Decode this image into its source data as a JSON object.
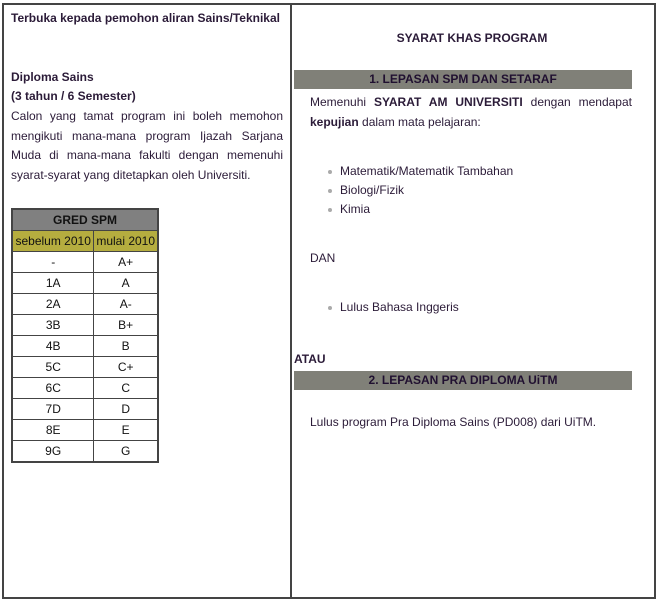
{
  "left": {
    "intro": "Terbuka kepada pemohon aliran Sains/Teknikal",
    "program_title": "Diploma Sains",
    "duration": "(3 tahun / 6 Semester)",
    "description": "Calon yang tamat program ini boleh memohon mengikuti mana-mana program Ijazah Sarjana Muda di mana-mana fakulti dengan memenuhi syarat-syarat yang ditetapkan oleh Universiti.",
    "grade_table": {
      "title": "GRED SPM",
      "columns": [
        "sebelum 2010",
        "mulai 2010"
      ],
      "rows": [
        [
          "-",
          "A+"
        ],
        [
          "1A",
          "A"
        ],
        [
          "2A",
          "A-"
        ],
        [
          "3B",
          "B+"
        ],
        [
          "4B",
          "B"
        ],
        [
          "5C",
          "C+"
        ],
        [
          "6C",
          "C"
        ],
        [
          "7D",
          "D"
        ],
        [
          "8E",
          "E"
        ],
        [
          "9G",
          "G"
        ]
      ]
    }
  },
  "right": {
    "heading": "SYARAT KHAS PROGRAM",
    "section1": {
      "title": "1. LEPASAN SPM DAN SETARAF",
      "text_pre": "Memenuhi ",
      "text_bold": "SYARAT AM UNIVERSITI",
      "text_mid": " dengan mendapat ",
      "text_bold2": "kepujian",
      "text_post": " dalam mata pelajaran:",
      "subjects": [
        "Matematik/Matematik Tambahan",
        "Biologi/Fizik",
        "Kimia"
      ],
      "and_label": "DAN",
      "extra": [
        "Lulus Bahasa Inggeris"
      ]
    },
    "or_label": "ATAU",
    "section2": {
      "title": "2. LEPASAN PRA DIPLOMA UiTM",
      "text": "Lulus program Pra Diploma Sains (PD008) dari UiTM."
    }
  },
  "colors": {
    "header_bar": "#808078",
    "table_header": "#808080",
    "table_subheader": "#b5ad3f",
    "border": "#444444"
  }
}
